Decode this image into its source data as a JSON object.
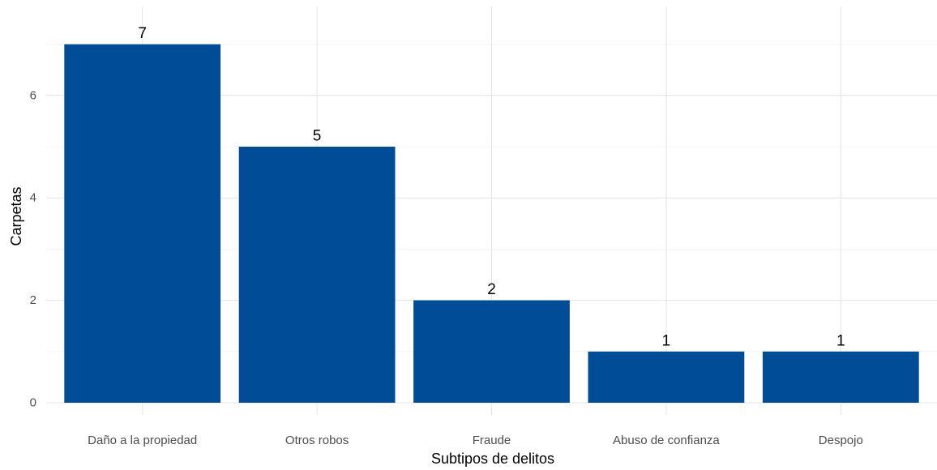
{
  "chart_data": {
    "type": "bar",
    "categories": [
      "Daño a la propiedad",
      "Otros robos",
      "Fraude",
      "Abuso de confianza",
      "Despojo"
    ],
    "values": [
      7,
      5,
      2,
      1,
      1
    ],
    "data_labels": [
      "7",
      "5",
      "2",
      "1",
      "1"
    ],
    "title": "",
    "xlabel": "Subtipos de delitos",
    "ylabel": "Carpetas",
    "ylim": [
      0,
      7.35
    ],
    "y_ticks": [
      0,
      2,
      4,
      6
    ],
    "y_tick_labels": [
      "0",
      "2",
      "4",
      "6"
    ],
    "grid": true,
    "legend": "none",
    "bar_color": "#004C97"
  }
}
